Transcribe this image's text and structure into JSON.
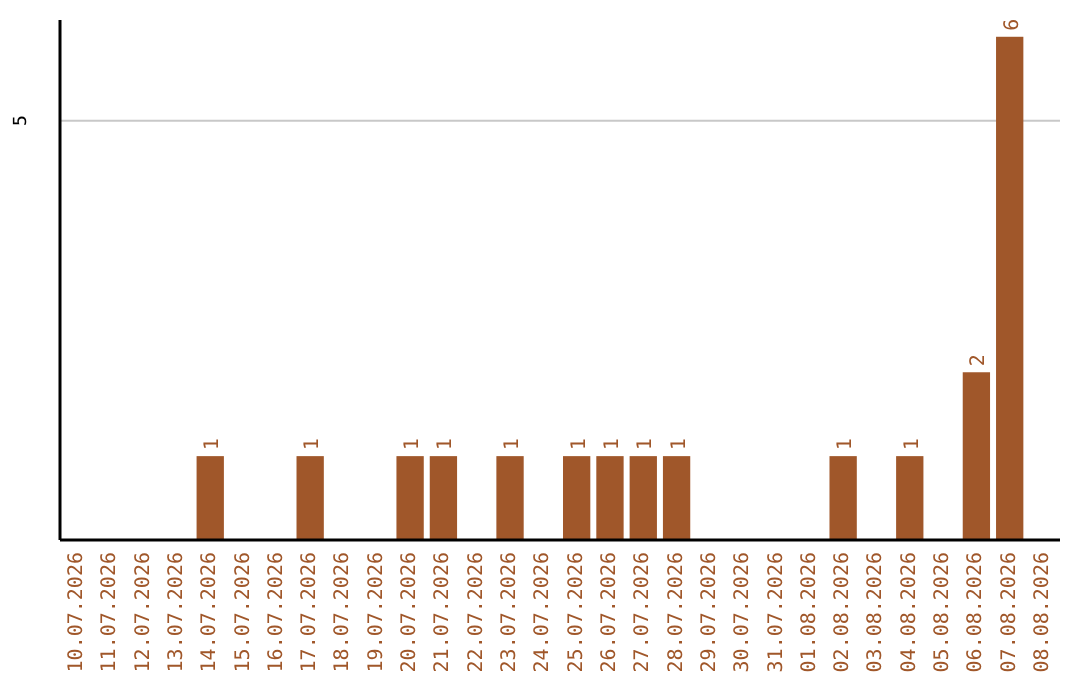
{
  "chart_data": {
    "type": "bar",
    "categories": [
      "10.07.2026",
      "11.07.2026",
      "12.07.2026",
      "13.07.2026",
      "14.07.2026",
      "15.07.2026",
      "16.07.2026",
      "17.07.2026",
      "18.07.2026",
      "19.07.2026",
      "20.07.2026",
      "21.07.2026",
      "22.07.2026",
      "23.07.2026",
      "24.07.2026",
      "25.07.2026",
      "26.07.2026",
      "27.07.2026",
      "28.07.2026",
      "29.07.2026",
      "30.07.2026",
      "31.07.2026",
      "01.08.2026",
      "02.08.2026",
      "03.08.2026",
      "04.08.2026",
      "05.08.2026",
      "06.08.2026",
      "07.08.2026",
      "08.08.2026"
    ],
    "values": [
      0,
      0,
      0,
      0,
      1,
      0,
      0,
      1,
      0,
      0,
      1,
      1,
      0,
      1,
      0,
      1,
      1,
      1,
      1,
      0,
      0,
      0,
      0,
      1,
      0,
      1,
      0,
      2,
      6,
      0
    ],
    "value_labels": [
      null,
      null,
      null,
      null,
      "1",
      null,
      null,
      "1",
      null,
      null,
      "1",
      "1",
      null,
      "1",
      null,
      "1",
      "1",
      "1",
      "1",
      null,
      null,
      null,
      null,
      "1",
      null,
      "1",
      null,
      "2",
      "6",
      null
    ],
    "color": "#a0572a",
    "ylim": [
      0,
      6.2
    ],
    "yticks": [
      5
    ],
    "grid": "y"
  }
}
